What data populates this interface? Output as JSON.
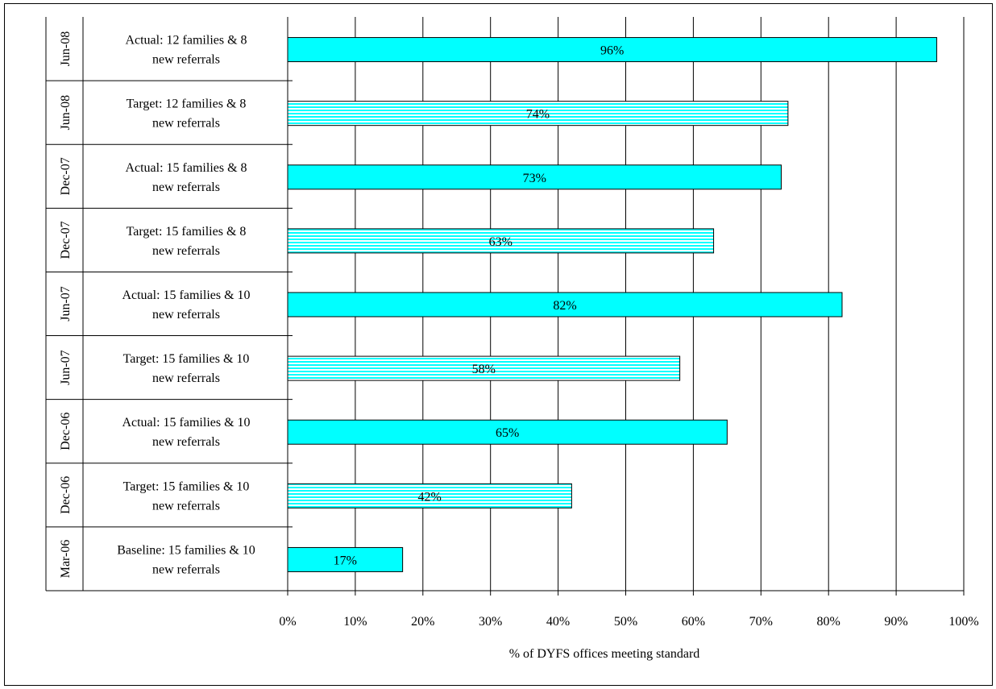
{
  "chart_data": {
    "type": "bar",
    "orientation": "horizontal",
    "xlabel": "% of DYFS offices meeting standard",
    "xlim": [
      0,
      100
    ],
    "xticks": [
      "0%",
      "10%",
      "20%",
      "30%",
      "40%",
      "50%",
      "60%",
      "70%",
      "80%",
      "90%",
      "100%"
    ],
    "grid": true,
    "colors": {
      "fill": "#00ffff",
      "stripe": "#00ffff",
      "background": "#ffffff",
      "outline": "#000000"
    },
    "bars": [
      {
        "date": "Jun-08",
        "line1": "Actual: 12 families & 8",
        "line2": "new referrals",
        "value": 96,
        "label": "96%",
        "style": "solid"
      },
      {
        "date": "Jun-08",
        "line1": "Target: 12 families & 8",
        "line2": "new referrals",
        "value": 74,
        "label": "74%",
        "style": "striped"
      },
      {
        "date": "Dec-07",
        "line1": "Actual: 15 families & 8",
        "line2": "new referrals",
        "value": 73,
        "label": "73%",
        "style": "solid"
      },
      {
        "date": "Dec-07",
        "line1": "Target: 15 families & 8",
        "line2": "new referrals",
        "value": 63,
        "label": "63%",
        "style": "striped"
      },
      {
        "date": "Jun-07",
        "line1": "Actual: 15 families & 10",
        "line2": "new referrals",
        "value": 82,
        "label": "82%",
        "style": "solid"
      },
      {
        "date": "Jun-07",
        "line1": "Target: 15 families & 10",
        "line2": "new referrals",
        "value": 58,
        "label": "58%",
        "style": "striped"
      },
      {
        "date": "Dec-06",
        "line1": "Actual: 15 families & 10",
        "line2": "new referrals",
        "value": 65,
        "label": "65%",
        "style": "solid"
      },
      {
        "date": "Dec-06",
        "line1": "Target: 15 families & 10",
        "line2": "new referrals",
        "value": 42,
        "label": "42%",
        "style": "striped"
      },
      {
        "date": "Mar-06",
        "line1": "Baseline: 15 families & 10",
        "line2": "new referrals",
        "value": 17,
        "label": "17%",
        "style": "solid"
      }
    ]
  }
}
